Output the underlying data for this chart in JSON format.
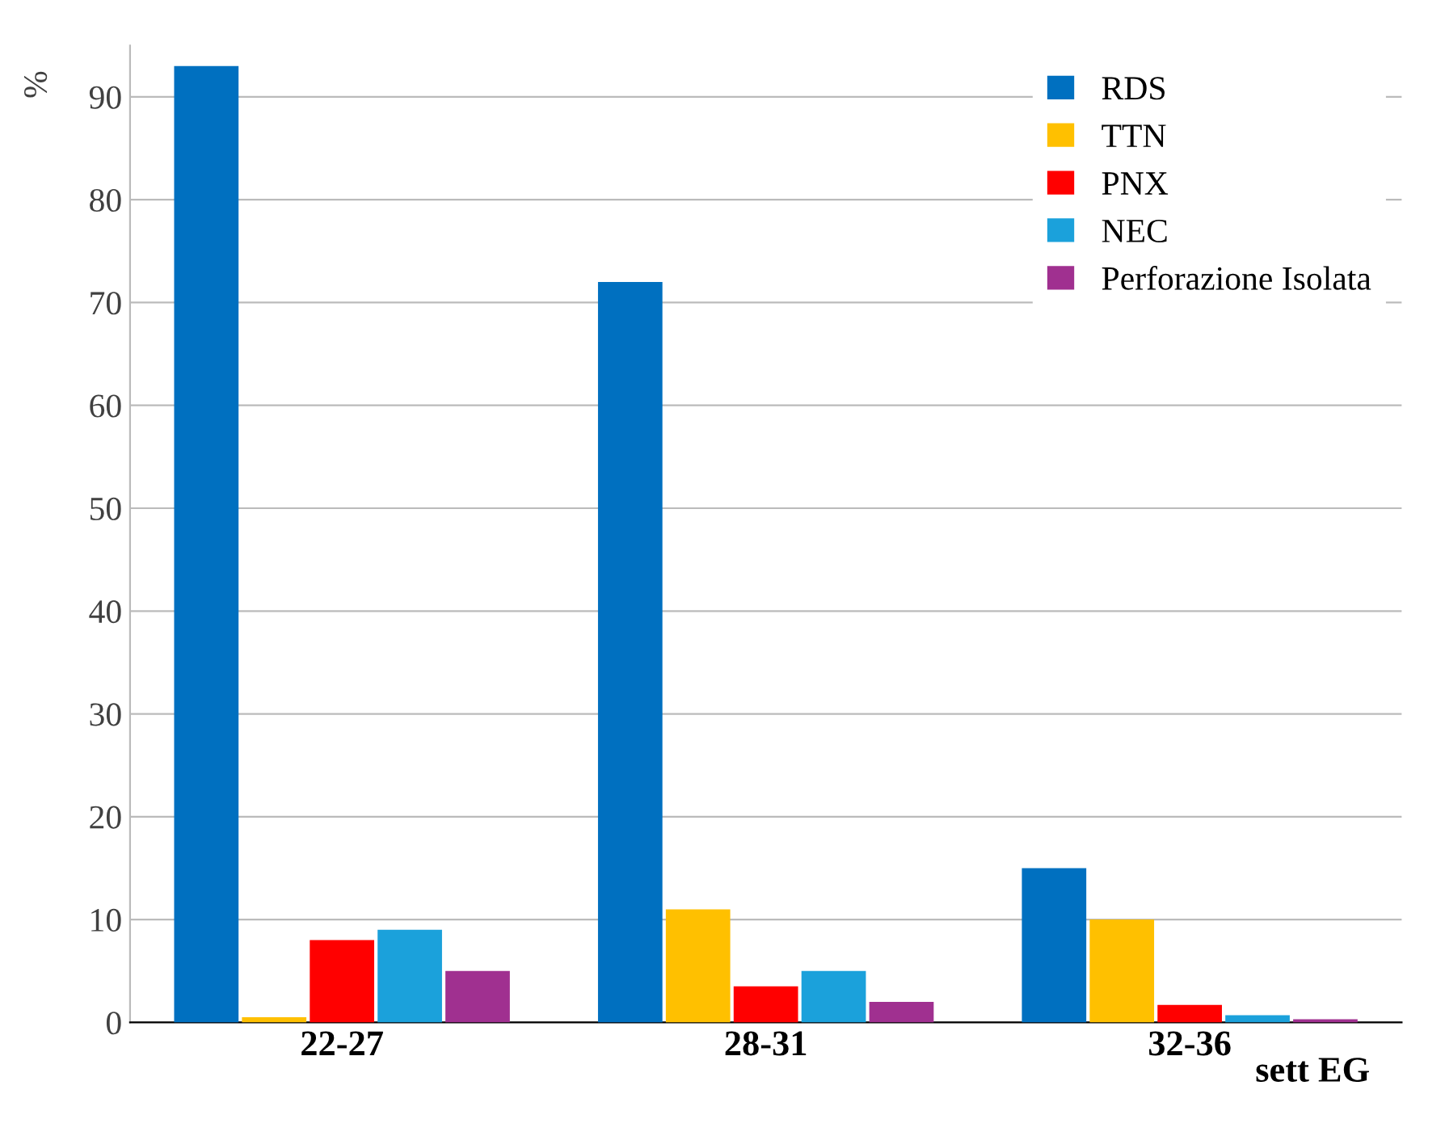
{
  "chart_data": {
    "type": "bar",
    "ylabel": "%",
    "xlabel": "sett EG",
    "categories": [
      "22-27",
      "28-31",
      "32-36"
    ],
    "series": [
      {
        "name": "RDS",
        "color": "#0070c0",
        "values": [
          93,
          72,
          15
        ]
      },
      {
        "name": "TTN",
        "color": "#ffc000",
        "values": [
          0.5,
          11,
          10
        ]
      },
      {
        "name": "PNX",
        "color": "#ff0000",
        "values": [
          8,
          3.5,
          1.7
        ]
      },
      {
        "name": "NEC",
        "color": "#1ba1db",
        "values": [
          9,
          5,
          0.7
        ]
      },
      {
        "name": "Perforazione Isolata",
        "color": "#a03090",
        "values": [
          5,
          2,
          0.3
        ]
      }
    ],
    "ylim": [
      0,
      95
    ],
    "yticks": [
      0,
      10,
      20,
      30,
      40,
      50,
      60,
      70,
      80,
      90
    ],
    "grid": "y",
    "legend": "top right"
  }
}
